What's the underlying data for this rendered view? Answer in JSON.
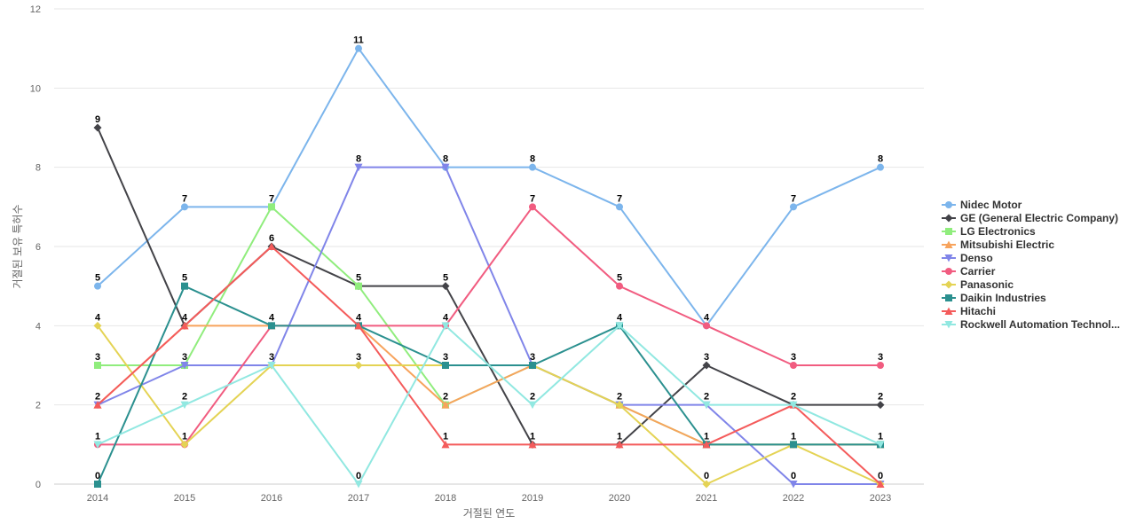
{
  "chart_data": {
    "type": "line",
    "xlabel": "거절된 연도",
    "ylabel": "거절된 보유 특허수",
    "x": [
      "2014",
      "2015",
      "2016",
      "2017",
      "2018",
      "2019",
      "2020",
      "2021",
      "2022",
      "2023"
    ],
    "ylim": [
      0,
      12
    ],
    "yticks": [
      0,
      2,
      4,
      6,
      8,
      10,
      12
    ],
    "grid": true,
    "legend_position": "right",
    "series": [
      {
        "name": "Nidec Motor",
        "color": "#7cb5ec",
        "marker": "circle",
        "values": [
          5,
          7,
          7,
          11,
          8,
          8,
          7,
          4,
          7,
          8
        ]
      },
      {
        "name": "GE (General Electric Company)",
        "color": "#434348",
        "marker": "diamond",
        "values": [
          9,
          4,
          6,
          5,
          5,
          1,
          1,
          3,
          2,
          2
        ]
      },
      {
        "name": "LG Electronics",
        "color": "#90ed7d",
        "marker": "square",
        "values": [
          3,
          3,
          7,
          5,
          2,
          3,
          2,
          1,
          1,
          1
        ]
      },
      {
        "name": "Mitsubishi Electric",
        "color": "#f7a35c",
        "marker": "triangle",
        "values": [
          2,
          4,
          4,
          4,
          2,
          3,
          2,
          1,
          1,
          1
        ]
      },
      {
        "name": "Denso",
        "color": "#8085e9",
        "marker": "triangle-down",
        "values": [
          2,
          3,
          3,
          8,
          8,
          3,
          2,
          2,
          0,
          0
        ]
      },
      {
        "name": "Carrier",
        "color": "#f15c80",
        "marker": "circle",
        "values": [
          1,
          1,
          4,
          4,
          4,
          7,
          5,
          4,
          3,
          3
        ]
      },
      {
        "name": "Panasonic",
        "color": "#e4d354",
        "marker": "diamond",
        "values": [
          4,
          1,
          3,
          3,
          3,
          3,
          2,
          0,
          1,
          0
        ]
      },
      {
        "name": "Daikin Industries",
        "color": "#2b908f",
        "marker": "square",
        "values": [
          0,
          5,
          4,
          4,
          3,
          3,
          4,
          1,
          1,
          1
        ]
      },
      {
        "name": "Hitachi",
        "color": "#f45b5b",
        "marker": "triangle",
        "values": [
          2,
          4,
          6,
          4,
          1,
          1,
          1,
          1,
          2,
          0
        ]
      },
      {
        "name": "Rockwell Automation Technol...",
        "color": "#91e8e1",
        "marker": "triangle-down",
        "values": [
          1,
          2,
          3,
          0,
          4,
          2,
          4,
          2,
          2,
          1
        ]
      }
    ],
    "data_labels": [
      {
        "x": "2014",
        "text": "9"
      },
      {
        "x": "2014",
        "text": "5"
      },
      {
        "x": "2014",
        "text": "4"
      },
      {
        "x": "2014",
        "text": "3"
      },
      {
        "x": "2014",
        "text": "2"
      },
      {
        "x": "2014",
        "text": "1"
      },
      {
        "x": "2014",
        "text": "0"
      },
      {
        "x": "2015",
        "text": "7"
      },
      {
        "x": "2015",
        "text": "5"
      },
      {
        "x": "2015",
        "text": "4"
      },
      {
        "x": "2015",
        "text": "3"
      },
      {
        "x": "2015",
        "text": "2"
      },
      {
        "x": "2015",
        "text": "1"
      },
      {
        "x": "2016",
        "text": "7"
      },
      {
        "x": "2016",
        "text": "6"
      },
      {
        "x": "2016",
        "text": "4"
      },
      {
        "x": "2016",
        "text": "3"
      },
      {
        "x": "2017",
        "text": "11"
      },
      {
        "x": "2017",
        "text": "8"
      },
      {
        "x": "2017",
        "text": "5"
      },
      {
        "x": "2017",
        "text": "4"
      },
      {
        "x": "2017",
        "text": "3"
      },
      {
        "x": "2017",
        "text": "0"
      },
      {
        "x": "2018",
        "text": "8"
      },
      {
        "x": "2018",
        "text": "5"
      },
      {
        "x": "2018",
        "text": "4"
      },
      {
        "x": "2018",
        "text": "3"
      },
      {
        "x": "2018",
        "text": "2"
      },
      {
        "x": "2018",
        "text": "1"
      },
      {
        "x": "2019",
        "text": "8"
      },
      {
        "x": "2019",
        "text": "7"
      },
      {
        "x": "2019",
        "text": "3"
      },
      {
        "x": "2019",
        "text": "2"
      },
      {
        "x": "2019",
        "text": "1"
      },
      {
        "x": "2020",
        "text": "7"
      },
      {
        "x": "2020",
        "text": "5"
      },
      {
        "x": "2020",
        "text": "4"
      },
      {
        "x": "2020",
        "text": "2"
      },
      {
        "x": "2020",
        "text": "1"
      },
      {
        "x": "2021",
        "text": "4"
      },
      {
        "x": "2021",
        "text": "3"
      },
      {
        "x": "2021",
        "text": "2"
      },
      {
        "x": "2021",
        "text": "1"
      },
      {
        "x": "2021",
        "text": "0"
      },
      {
        "x": "2022",
        "text": "7"
      },
      {
        "x": "2022",
        "text": "3"
      },
      {
        "x": "2022",
        "text": "2"
      },
      {
        "x": "2022",
        "text": "1"
      },
      {
        "x": "2022",
        "text": "0"
      },
      {
        "x": "2023",
        "text": "8"
      },
      {
        "x": "2023",
        "text": "3"
      },
      {
        "x": "2023",
        "text": "2"
      },
      {
        "x": "2023",
        "text": "1"
      },
      {
        "x": "2023",
        "text": "0"
      }
    ]
  }
}
